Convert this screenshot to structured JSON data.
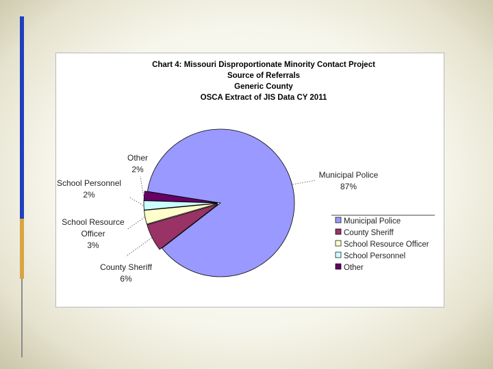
{
  "chart_data": {
    "type": "pie",
    "title_lines": [
      "Chart 4: Missouri Disproportionate Minority Contact Project",
      "Source of Referrals",
      "Generic County",
      "OSCA Extract of JIS Data CY 2011"
    ],
    "slices": [
      {
        "label": "Municipal Police",
        "value": 87,
        "value_label": "87%",
        "color": "#9999ff"
      },
      {
        "label": "County Sheriff",
        "value": 6,
        "value_label": "6%",
        "color": "#993366"
      },
      {
        "label": "School Resource Officer",
        "value": 3,
        "value_label": "3%",
        "color": "#ffffcc"
      },
      {
        "label": "School Personnel",
        "value": 2,
        "value_label": "2%",
        "color": "#ccffff"
      },
      {
        "label": "Other",
        "value": 2,
        "value_label": "2%",
        "color": "#660066"
      }
    ],
    "callouts": [
      {
        "lines": [
          "Municipal Police",
          "87%"
        ]
      },
      {
        "lines": [
          "County Sheriff",
          "6%"
        ]
      },
      {
        "lines": [
          "School Resource",
          "Officer",
          "3%"
        ]
      },
      {
        "lines": [
          "School Personnel",
          "2%"
        ]
      },
      {
        "lines": [
          "Other",
          "2%"
        ]
      }
    ],
    "legend": [
      "Municipal Police",
      "County Sheriff",
      "School Resource Officer",
      "School Personnel",
      "Other"
    ],
    "legend_position": "right"
  }
}
